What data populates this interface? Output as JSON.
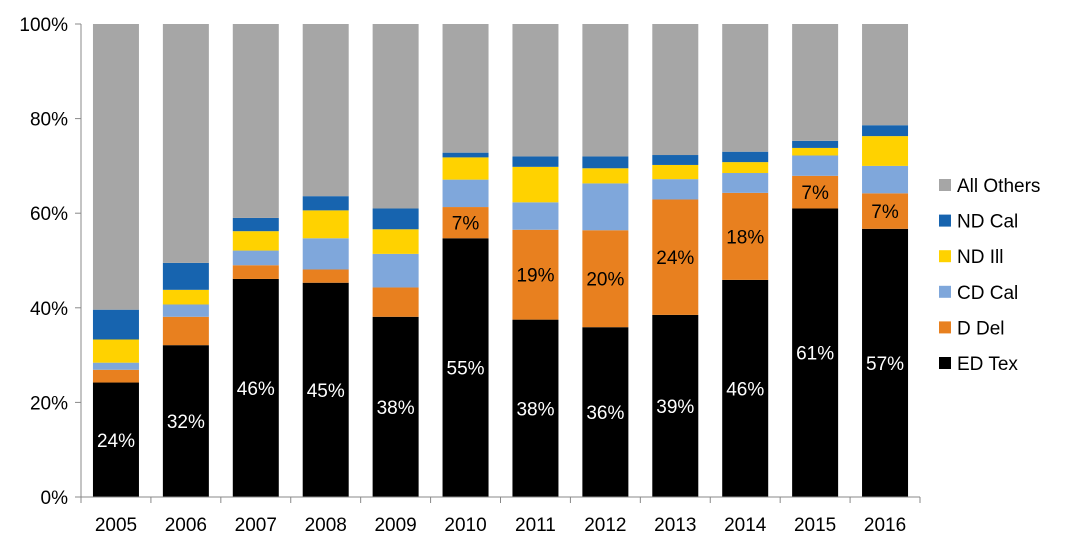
{
  "chart_data": {
    "type": "bar",
    "stacked": true,
    "percent_stacked": true,
    "title": "",
    "xlabel": "",
    "ylabel": "",
    "ylim": [
      0,
      100
    ],
    "yticks": [
      "0%",
      "20%",
      "40%",
      "60%",
      "80%",
      "100%"
    ],
    "grid": false,
    "legend_position": "right",
    "categories": [
      "2005",
      "2006",
      "2007",
      "2008",
      "2009",
      "2010",
      "2011",
      "2012",
      "2013",
      "2014",
      "2015",
      "2016"
    ],
    "series": [
      {
        "name": "ED Tex",
        "color": "#000000",
        "values": [
          24.2,
          32.1,
          46.1,
          45.3,
          38.1,
          54.7,
          37.5,
          35.9,
          38.5,
          45.9,
          61.0,
          56.7
        ]
      },
      {
        "name": "D Del",
        "color": "#E8801F",
        "values": [
          2.7,
          6.0,
          2.9,
          2.8,
          6.2,
          6.6,
          19.0,
          20.5,
          24.4,
          18.4,
          6.9,
          7.5
        ]
      },
      {
        "name": "CD Cal",
        "color": "#7FA7DB",
        "values": [
          1.5,
          2.6,
          3.1,
          6.6,
          7.1,
          5.8,
          5.8,
          9.9,
          4.3,
          4.2,
          4.3,
          5.8
        ]
      },
      {
        "name": "ND Ill",
        "color": "#FFD200",
        "values": [
          4.9,
          3.1,
          4.1,
          5.9,
          5.2,
          4.7,
          7.5,
          3.2,
          3.0,
          2.3,
          1.6,
          6.3
        ]
      },
      {
        "name": "ND Cal",
        "color": "#1764AF",
        "values": [
          6.3,
          5.7,
          2.8,
          3.0,
          4.4,
          1.0,
          2.2,
          2.5,
          2.1,
          2.2,
          1.5,
          2.3
        ]
      },
      {
        "name": "All Others",
        "color": "#A6A6A6",
        "values": [
          60.4,
          50.5,
          41.0,
          36.4,
          39.0,
          27.2,
          28.0,
          28.0,
          27.7,
          27.0,
          24.7,
          21.4
        ]
      }
    ],
    "data_labels": [
      {
        "series": "ED Tex",
        "category": "2005",
        "text": "24%",
        "color": "#ffffff"
      },
      {
        "series": "ED Tex",
        "category": "2006",
        "text": "32%",
        "color": "#ffffff"
      },
      {
        "series": "ED Tex",
        "category": "2007",
        "text": "46%",
        "color": "#ffffff"
      },
      {
        "series": "ED Tex",
        "category": "2008",
        "text": "45%",
        "color": "#ffffff"
      },
      {
        "series": "ED Tex",
        "category": "2009",
        "text": "38%",
        "color": "#ffffff"
      },
      {
        "series": "ED Tex",
        "category": "2010",
        "text": "55%",
        "color": "#ffffff"
      },
      {
        "series": "ED Tex",
        "category": "2011",
        "text": "38%",
        "color": "#ffffff"
      },
      {
        "series": "ED Tex",
        "category": "2012",
        "text": "36%",
        "color": "#ffffff"
      },
      {
        "series": "ED Tex",
        "category": "2013",
        "text": "39%",
        "color": "#ffffff"
      },
      {
        "series": "ED Tex",
        "category": "2014",
        "text": "46%",
        "color": "#ffffff"
      },
      {
        "series": "ED Tex",
        "category": "2015",
        "text": "61%",
        "color": "#ffffff"
      },
      {
        "series": "ED Tex",
        "category": "2016",
        "text": "57%",
        "color": "#ffffff"
      },
      {
        "series": "D Del",
        "category": "2010",
        "text": "7%",
        "color": "#000000"
      },
      {
        "series": "D Del",
        "category": "2011",
        "text": "19%",
        "color": "#000000"
      },
      {
        "series": "D Del",
        "category": "2012",
        "text": "20%",
        "color": "#000000"
      },
      {
        "series": "D Del",
        "category": "2013",
        "text": "24%",
        "color": "#000000"
      },
      {
        "series": "D Del",
        "category": "2014",
        "text": "18%",
        "color": "#000000"
      },
      {
        "series": "D Del",
        "category": "2015",
        "text": "7%",
        "color": "#000000"
      },
      {
        "series": "D Del",
        "category": "2016",
        "text": "7%",
        "color": "#000000"
      }
    ]
  }
}
